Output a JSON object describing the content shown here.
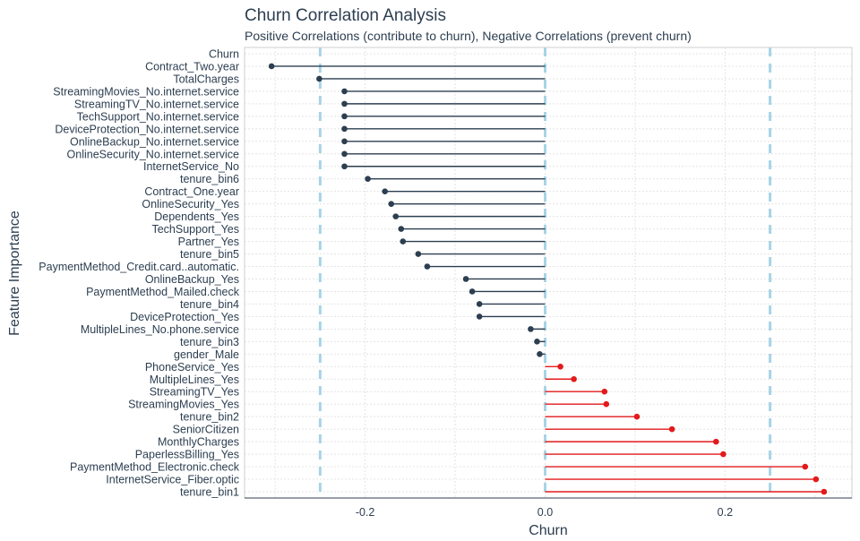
{
  "chart_data": {
    "type": "lollipop",
    "title": "Churn Correlation Analysis",
    "subtitle": "Positive Correlations (contribute to churn), Negative Correlations (prevent churn)",
    "xlabel": "Churn",
    "ylabel": "Feature Importance",
    "xlim": [
      -0.334,
      0.341
    ],
    "xticks": [
      -0.2,
      0.0,
      0.2
    ],
    "xtick_labels": [
      "-0.2",
      "0.0",
      "0.2"
    ],
    "reference_lines": [
      -0.25,
      0.0,
      0.25
    ],
    "grid": true,
    "colors": {
      "negative": "#2c3e50",
      "positive": "#e31a1c",
      "reference": "#a6d4e6",
      "text": "#2c3e50"
    },
    "categories": [
      "Churn",
      "Contract_Two.year",
      "TotalCharges",
      "StreamingMovies_No.internet.service",
      "StreamingTV_No.internet.service",
      "TechSupport_No.internet.service",
      "DeviceProtection_No.internet.service",
      "OnlineBackup_No.internet.service",
      "OnlineSecurity_No.internet.service",
      "InternetService_No",
      "tenure_bin6",
      "Contract_One.year",
      "OnlineSecurity_Yes",
      "Dependents_Yes",
      "TechSupport_Yes",
      "Partner_Yes",
      "tenure_bin5",
      "PaymentMethod_Credit.card..automatic.",
      "OnlineBackup_Yes",
      "PaymentMethod_Mailed.check",
      "tenure_bin4",
      "DeviceProtection_Yes",
      "MultipleLines_No.phone.service",
      "tenure_bin3",
      "gender_Male",
      "PhoneService_Yes",
      "MultipleLines_Yes",
      "StreamingTV_Yes",
      "StreamingMovies_Yes",
      "tenure_bin2",
      "SeniorCitizen",
      "MonthlyCharges",
      "PaperlessBilling_Yes",
      "PaymentMethod_Electronic.check",
      "InternetService_Fiber.optic",
      "tenure_bin1"
    ],
    "values": [
      null,
      -0.304,
      -0.251,
      -0.223,
      -0.223,
      -0.223,
      -0.223,
      -0.223,
      -0.223,
      -0.223,
      -0.197,
      -0.178,
      -0.171,
      -0.166,
      -0.16,
      -0.158,
      -0.141,
      -0.131,
      -0.088,
      -0.081,
      -0.073,
      -0.073,
      -0.016,
      -0.009,
      -0.006,
      0.017,
      0.032,
      0.066,
      0.068,
      0.102,
      0.141,
      0.19,
      0.198,
      0.289,
      0.301,
      0.31
    ]
  }
}
